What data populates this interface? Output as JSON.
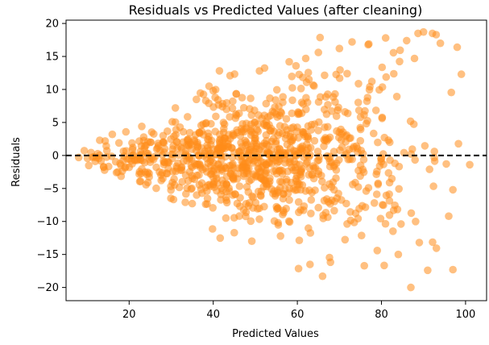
{
  "chart_data": {
    "type": "scatter",
    "title": "Residuals vs Predicted Values (after cleaning)",
    "xlabel": "Predicted Values",
    "ylabel": "Residuals",
    "xlim": [
      5,
      105
    ],
    "ylim": [
      -22,
      20.5
    ],
    "xticks": [
      20,
      40,
      60,
      80,
      100
    ],
    "yticks": [
      -20,
      -15,
      -10,
      -5,
      0,
      5,
      10,
      15,
      20
    ],
    "grid": false,
    "reference_line": {
      "y": 0,
      "style": "dashed",
      "color": "#000000"
    },
    "point_color": "#ff8c1a",
    "point_opacity": 0.55,
    "n_points": 1000,
    "x_center": 50,
    "x_spread": 18,
    "x_min": 8,
    "x_max": 101,
    "residual_spread_per_unit_x": 0.1,
    "random_seed": 7,
    "highlighted_points": [
      {
        "x": 8,
        "y": -0.3
      },
      {
        "x": 13,
        "y": 2.3
      },
      {
        "x": 16,
        "y": 3.2
      },
      {
        "x": 17,
        "y": -2.6
      },
      {
        "x": 23,
        "y": 4.4
      },
      {
        "x": 31,
        "y": 7.2
      },
      {
        "x": 36,
        "y": 8.5
      },
      {
        "x": 39,
        "y": 10.5
      },
      {
        "x": 40,
        "y": 9.8
      },
      {
        "x": 44,
        "y": 12.1
      },
      {
        "x": 51,
        "y": 12.8
      },
      {
        "x": 62,
        "y": 14.7
      },
      {
        "x": 65,
        "y": 15.6
      },
      {
        "x": 70,
        "y": 16.2
      },
      {
        "x": 73,
        "y": 17.2
      },
      {
        "x": 77,
        "y": 16.9
      },
      {
        "x": 81,
        "y": 17.8
      },
      {
        "x": 86,
        "y": 17.4
      },
      {
        "x": 90,
        "y": 18.7
      },
      {
        "x": 93,
        "y": 18.3
      },
      {
        "x": 94,
        "y": 17.0
      },
      {
        "x": 98,
        "y": 16.4
      },
      {
        "x": 99,
        "y": 12.3
      },
      {
        "x": 101,
        "y": -1.4
      },
      {
        "x": 97,
        "y": -5.2
      },
      {
        "x": 96,
        "y": -9.2
      },
      {
        "x": 97,
        "y": -17.3
      },
      {
        "x": 91,
        "y": -17.4
      },
      {
        "x": 87,
        "y": -20.0
      },
      {
        "x": 66,
        "y": -18.3
      },
      {
        "x": 63,
        "y": -16.5
      },
      {
        "x": 56,
        "y": -12.2
      },
      {
        "x": 45,
        "y": -11.7
      },
      {
        "x": 43,
        "y": -9.5
      },
      {
        "x": 35,
        "y": -7.3
      },
      {
        "x": 28,
        "y": -3.5
      },
      {
        "x": 20,
        "y": -1.8
      },
      {
        "x": 89,
        "y": -13.2
      },
      {
        "x": 84,
        "y": -15.0
      },
      {
        "x": 79,
        "y": -14.4
      }
    ]
  }
}
